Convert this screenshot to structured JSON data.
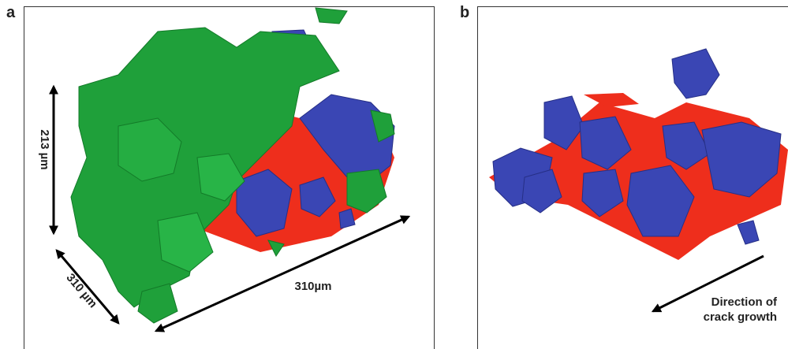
{
  "panels": [
    {
      "label": "a",
      "annotations": [
        "213 µm",
        "310 µm",
        "310µm"
      ]
    },
    {
      "label": "b",
      "annotations": [
        "Direction of",
        "crack growth"
      ]
    }
  ]
}
